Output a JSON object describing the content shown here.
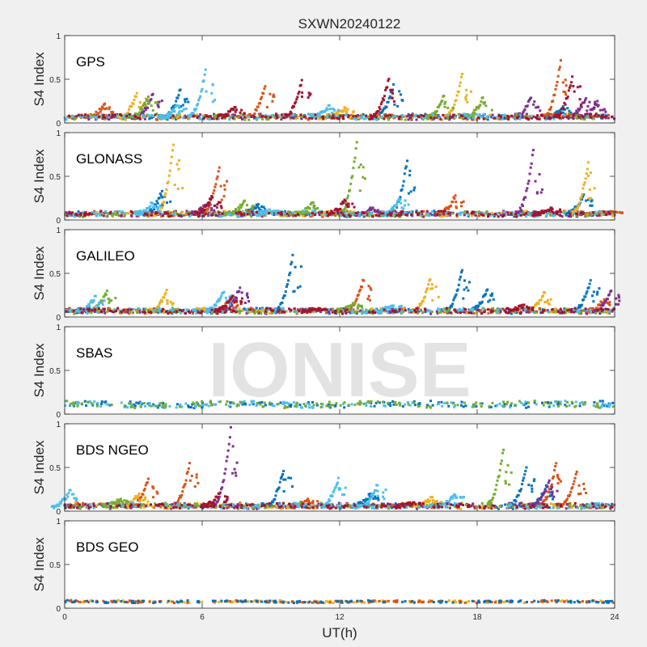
{
  "figure": {
    "title": "SXWN20240122",
    "xlabel": "UT(h)",
    "watermark": "IONISE",
    "background_color": "#f0f0f0",
    "axes_color": "#ffffff",
    "watermark_color": "#e3e3e3"
  },
  "chart_data": [
    {
      "type": "scatter",
      "label": "GPS",
      "ylabel": "S4 Index",
      "xlim": [
        0,
        24
      ],
      "ylim": [
        0,
        1
      ],
      "xticks": [
        0,
        6,
        12,
        18,
        24
      ],
      "yticks": [
        0,
        0.5,
        1
      ],
      "baseline": 0.07,
      "noise": 0.025,
      "tick_labels_shown": false,
      "series": [
        {
          "color": "#0072BD",
          "values": [
            [
              5.0,
              0.38
            ],
            [
              14.3,
              0.44
            ],
            [
              21.7,
              0.2
            ]
          ]
        },
        {
          "color": "#D95319",
          "values": [
            [
              8.7,
              0.42
            ],
            [
              21.6,
              0.73
            ],
            [
              1.7,
              0.22
            ]
          ]
        },
        {
          "color": "#EDB120",
          "values": [
            [
              3.1,
              0.34
            ],
            [
              17.3,
              0.56
            ],
            [
              12.2,
              0.18
            ]
          ]
        },
        {
          "color": "#7E2F8E",
          "values": [
            [
              3.8,
              0.33
            ],
            [
              20.3,
              0.3
            ],
            [
              22.7,
              0.3
            ],
            [
              23.2,
              0.25
            ]
          ]
        },
        {
          "color": "#77AC30",
          "values": [
            [
              3.6,
              0.3
            ],
            [
              16.5,
              0.31
            ],
            [
              18.2,
              0.29
            ]
          ]
        },
        {
          "color": "#4DBEEE",
          "values": [
            [
              6.1,
              0.61
            ],
            [
              4.9,
              0.2
            ],
            [
              11.5,
              0.2
            ]
          ]
        },
        {
          "color": "#A2142F",
          "values": [
            [
              10.3,
              0.49
            ],
            [
              14.1,
              0.52
            ],
            [
              22.1,
              0.53
            ],
            [
              7.4,
              0.18
            ]
          ]
        }
      ]
    },
    {
      "type": "scatter",
      "label": "GLONASS",
      "ylabel": "S4 Index",
      "xlim": [
        0,
        24
      ],
      "ylim": [
        0,
        1
      ],
      "xticks": [
        0,
        6,
        12,
        18,
        24
      ],
      "yticks": [
        0,
        0.5,
        1
      ],
      "baseline": 0.07,
      "noise": 0.025,
      "tick_labels_shown": false,
      "series": [
        {
          "color": "#0072BD",
          "values": [
            [
              4.2,
              0.33
            ],
            [
              14.9,
              0.69
            ],
            [
              22.6,
              0.3
            ],
            [
              8.4,
              0.18
            ]
          ]
        },
        {
          "color": "#D95319",
          "values": [
            [
              6.7,
              0.6
            ],
            [
              17.0,
              0.28
            ],
            [
              23.9,
              0.1
            ]
          ]
        },
        {
          "color": "#EDB120",
          "values": [
            [
              4.7,
              0.88
            ],
            [
              22.8,
              0.66
            ],
            [
              12.0,
              0.12
            ]
          ]
        },
        {
          "color": "#7E2F8E",
          "values": [
            [
              20.4,
              0.8
            ],
            [
              6.2,
              0.2
            ],
            [
              13.4,
              0.14
            ]
          ]
        },
        {
          "color": "#77AC30",
          "values": [
            [
              12.7,
              0.89
            ],
            [
              7.8,
              0.22
            ],
            [
              10.8,
              0.2
            ]
          ]
        },
        {
          "color": "#4DBEEE",
          "values": [
            [
              3.8,
              0.2
            ],
            [
              14.6,
              0.26
            ],
            [
              9.0,
              0.12
            ]
          ]
        },
        {
          "color": "#A2142F",
          "values": [
            [
              6.4,
              0.28
            ],
            [
              12.2,
              0.24
            ],
            [
              21.2,
              0.14
            ]
          ]
        }
      ]
    },
    {
      "type": "scatter",
      "label": "GALILEO",
      "ylabel": "S4 Index",
      "xlim": [
        0,
        24
      ],
      "ylim": [
        0,
        1
      ],
      "xticks": [
        0,
        6,
        12,
        18,
        24
      ],
      "yticks": [
        0,
        0.5,
        1
      ],
      "baseline": 0.07,
      "noise": 0.025,
      "tick_labels_shown": false,
      "series": [
        {
          "color": "#0072BD",
          "values": [
            [
              9.9,
              0.71
            ],
            [
              17.3,
              0.54
            ],
            [
              22.9,
              0.42
            ],
            [
              18.4,
              0.33
            ]
          ]
        },
        {
          "color": "#D95319",
          "values": [
            [
              13.0,
              0.44
            ],
            [
              23.5,
              0.2
            ],
            [
              7.2,
              0.2
            ]
          ]
        },
        {
          "color": "#EDB120",
          "values": [
            [
              4.4,
              0.31
            ],
            [
              15.9,
              0.45
            ],
            [
              20.9,
              0.3
            ]
          ]
        },
        {
          "color": "#7E2F8E",
          "values": [
            [
              23.8,
              0.3
            ],
            [
              7.6,
              0.34
            ]
          ]
        },
        {
          "color": "#77AC30",
          "values": [
            [
              1.8,
              0.3
            ],
            [
              12.6,
              0.16
            ]
          ]
        },
        {
          "color": "#4DBEEE",
          "values": [
            [
              1.3,
              0.24
            ],
            [
              6.9,
              0.3
            ],
            [
              14.3,
              0.14
            ]
          ]
        },
        {
          "color": "#A2142F",
          "values": [
            [
              7.3,
              0.26
            ],
            [
              11.1,
              0.1
            ],
            [
              20.0,
              0.14
            ]
          ]
        }
      ]
    },
    {
      "type": "scatter",
      "label": "SBAS",
      "ylabel": "S4 Index",
      "xlim": [
        0,
        24
      ],
      "ylim": [
        0,
        1
      ],
      "xticks": [
        0,
        6,
        12,
        18,
        24
      ],
      "yticks": [
        0,
        0.5,
        1
      ],
      "baseline": 0.11,
      "noise": 0.03,
      "tick_labels_shown": false,
      "series": [
        {
          "color": "#0072BD",
          "values": []
        },
        {
          "color": "#4DBEEE",
          "values": []
        },
        {
          "color": "#77AC30",
          "values": []
        }
      ]
    },
    {
      "type": "scatter",
      "label": "BDS NGEO",
      "ylabel": "S4 Index",
      "xlim": [
        0,
        24
      ],
      "ylim": [
        0,
        1
      ],
      "xticks": [
        0,
        6,
        12,
        18,
        24
      ],
      "yticks": [
        0,
        0.5,
        1
      ],
      "baseline": 0.06,
      "noise": 0.025,
      "tick_labels_shown": false,
      "series": [
        {
          "color": "#0072BD",
          "values": [
            [
              9.5,
              0.47
            ],
            [
              20.1,
              0.5
            ],
            [
              21.0,
              0.3
            ],
            [
              13.3,
              0.2
            ]
          ]
        },
        {
          "color": "#D95319",
          "values": [
            [
              5.4,
              0.55
            ],
            [
              21.4,
              0.55
            ],
            [
              22.3,
              0.45
            ],
            [
              3.6,
              0.37
            ],
            [
              10.6,
              0.14
            ]
          ]
        },
        {
          "color": "#EDB120",
          "values": [
            [
              3.2,
              0.2
            ],
            [
              16.0,
              0.16
            ]
          ]
        },
        {
          "color": "#7E2F8E",
          "values": [
            [
              7.2,
              0.96
            ],
            [
              21.1,
              0.35
            ]
          ]
        },
        {
          "color": "#77AC30",
          "values": [
            [
              19.1,
              0.72
            ],
            [
              2.4,
              0.14
            ]
          ]
        },
        {
          "color": "#4DBEEE",
          "values": [
            [
              0.2,
              0.24
            ],
            [
              11.9,
              0.38
            ],
            [
              13.6,
              0.3
            ],
            [
              17.0,
              0.2
            ]
          ]
        },
        {
          "color": "#A2142F",
          "values": [
            [
              6.7,
              0.2
            ],
            [
              15.2,
              0.1
            ]
          ]
        }
      ]
    },
    {
      "type": "scatter",
      "label": "BDS GEO",
      "ylabel": "S4 Index",
      "xlim": [
        0,
        24
      ],
      "ylim": [
        0,
        1
      ],
      "xticks": [
        0,
        6,
        12,
        18,
        24
      ],
      "yticks": [
        0,
        0.5,
        1
      ],
      "baseline": 0.075,
      "noise": 0.012,
      "tick_labels_shown": true,
      "series": [
        {
          "color": "#EDB120",
          "values": []
        },
        {
          "color": "#D95319",
          "values": []
        },
        {
          "color": "#0072BD",
          "values": []
        }
      ]
    }
  ]
}
